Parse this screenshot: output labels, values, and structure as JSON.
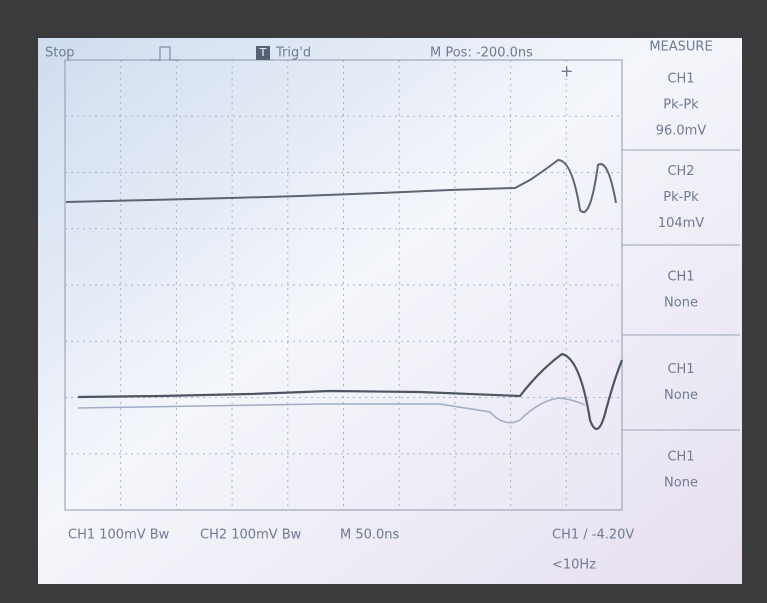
{
  "status": {
    "run_state": "Stop",
    "trigger_icon": "T",
    "trigger_state": "Trig'd",
    "horizontal_position": "M Pos: -200.0ns"
  },
  "menu": {
    "title": "MEASURE",
    "items": [
      {
        "source": "CH1",
        "type": "Pk-Pk",
        "value": "96.0mV"
      },
      {
        "source": "CH2",
        "type": "Pk-Pk",
        "value": "104mV"
      },
      {
        "source": "CH1",
        "type": "None"
      },
      {
        "source": "CH1",
        "type": "None"
      },
      {
        "source": "CH1",
        "type": "None"
      }
    ]
  },
  "footer": {
    "ch1_scale": "CH1 100mV Bw",
    "ch2_scale": "CH2 100mV Bw",
    "timebase": "M 50.0ns",
    "trigger": "CH1 / -4.20V",
    "frequency": "<10Hz"
  }
}
